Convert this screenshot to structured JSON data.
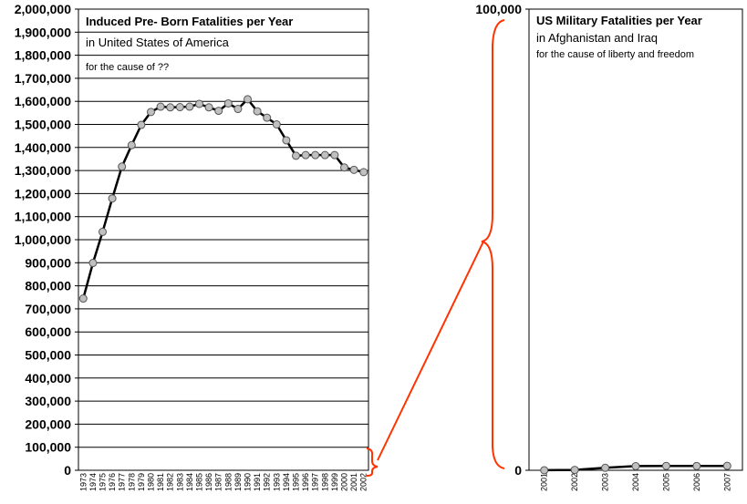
{
  "chart_data": [
    {
      "type": "line",
      "title": "Induced Pre- Born Fatalities per Year",
      "subtitle_1": "in United States of America",
      "subtitle_2": "for the cause of ??",
      "xlabel": "",
      "ylabel": "",
      "ylim": [
        0,
        2000000
      ],
      "grid": true,
      "yticks": [
        "0",
        "100,000",
        "200,000",
        "300,000",
        "400,000",
        "500,000",
        "600,000",
        "700,000",
        "800,000",
        "900,000",
        "1,000,000",
        "1,100,000",
        "1,200,000",
        "1,300,000",
        "1,400,000",
        "1,500,000",
        "1,600,000",
        "1,700,000",
        "1,800,000",
        "1,900,000",
        "2,000,000"
      ],
      "x": [
        "1973",
        "1974",
        "1975",
        "1976",
        "1977",
        "1978",
        "1979",
        "1980",
        "1981",
        "1982",
        "1983",
        "1984",
        "1985",
        "1986",
        "1987",
        "1988",
        "1989",
        "1990",
        "1991",
        "1992",
        "1993",
        "1994",
        "1995",
        "1996",
        "1997",
        "1998",
        "1999",
        "2000",
        "2001",
        "2002"
      ],
      "values": [
        745000,
        899000,
        1034000,
        1179000,
        1317000,
        1410000,
        1498000,
        1554000,
        1577000,
        1574000,
        1575000,
        1577000,
        1589000,
        1574000,
        1559000,
        1591000,
        1567000,
        1609000,
        1557000,
        1529000,
        1500000,
        1431000,
        1364000,
        1367000,
        1367000,
        1367000,
        1367000,
        1313000,
        1303000,
        1293000
      ],
      "line_color": "#000000",
      "marker_color": "#c0c0c0"
    },
    {
      "type": "line",
      "title": "US Military Fatalities per Year",
      "subtitle_1": "in Afghanistan and Iraq",
      "subtitle_2": "for the cause of liberty and freedom",
      "xlabel": "",
      "ylabel": "",
      "ylim": [
        0,
        100000
      ],
      "grid": false,
      "yticks": [
        "0",
        "100,000"
      ],
      "x": [
        "2001",
        "2002",
        "2003",
        "2004",
        "2005",
        "2006",
        "2007"
      ],
      "values": [
        12,
        79,
        534,
        900,
        943,
        920,
        953
      ],
      "line_color": "#000000",
      "marker_color": "#c0c0c0"
    }
  ],
  "connector_color": "#ff3300"
}
